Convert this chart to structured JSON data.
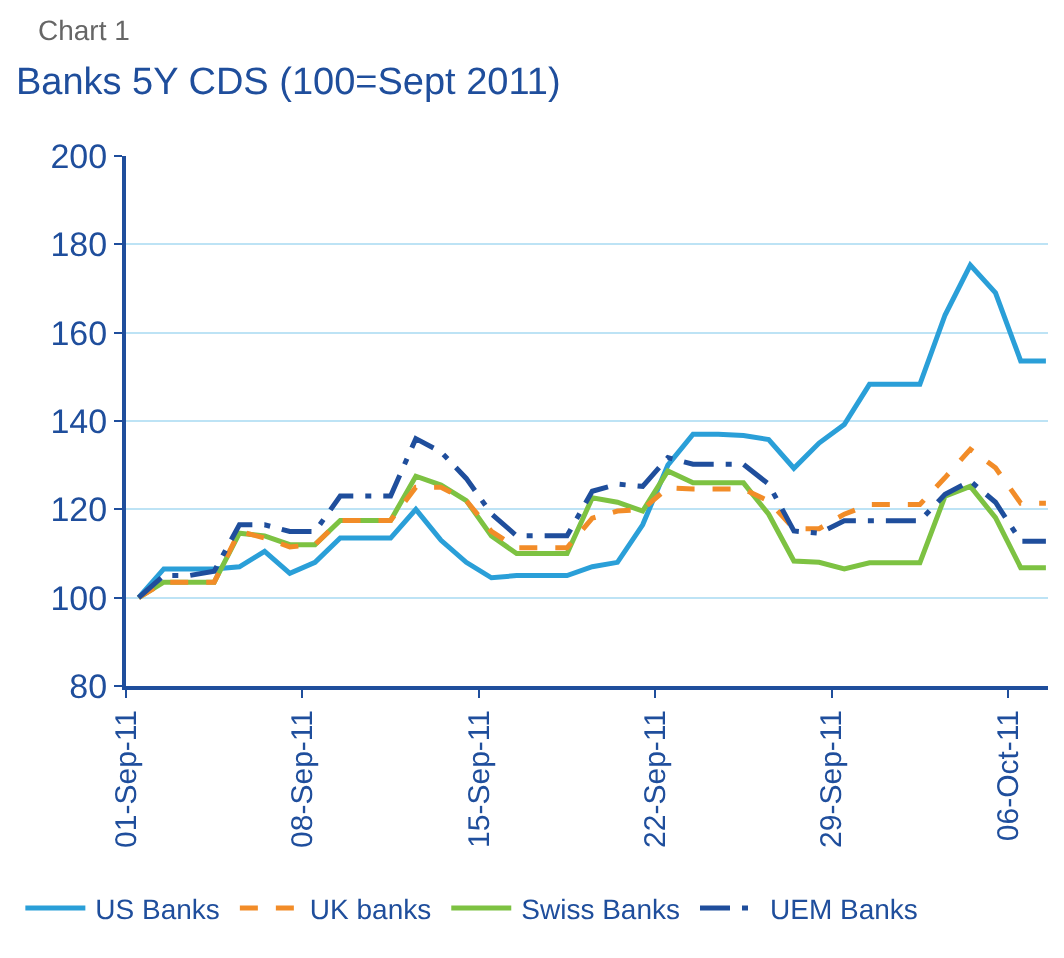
{
  "chart_data": {
    "type": "line",
    "title": "Banks 5Y CDS (100=Sept 2011)",
    "annotations": [
      "Chart 1"
    ],
    "x": [
      "2011-09-01T12:00",
      "2011-09-02T12:00",
      "2011-09-03T12:00",
      "2011-09-04T12:00",
      "2011-09-05T12:00",
      "2011-09-06T12:00",
      "2011-09-07T12:00",
      "2011-09-08T12:00",
      "2011-09-09T12:00",
      "2011-09-10T12:00",
      "2011-09-11T12:00",
      "2011-09-12T12:00",
      "2011-09-13T12:00",
      "2011-09-14T12:00",
      "2011-09-15T12:00",
      "2011-09-16T12:00",
      "2011-09-17T12:00",
      "2011-09-18T12:00",
      "2011-09-19T12:00",
      "2011-09-20T12:00",
      "2011-09-21T12:00",
      "2011-09-22T12:00",
      "2011-09-23T12:00",
      "2011-09-24T12:00",
      "2011-09-25T12:00",
      "2011-09-26T12:00",
      "2011-09-27T12:00",
      "2011-09-28T12:00",
      "2011-09-29T12:00",
      "2011-09-30T12:00",
      "2011-10-01T12:00",
      "2011-10-02T12:00",
      "2011-10-03T12:00",
      "2011-10-04T12:00",
      "2011-10-05T12:00",
      "2011-10-06T12:00",
      "2011-10-07T12:00"
    ],
    "series": [
      {
        "name": "US Banks",
        "color": "#2a9fd8",
        "line_style": "solid",
        "values": [
          100,
          106.5,
          106.5,
          106.5,
          107,
          110.5,
          105.5,
          108,
          113.5,
          113.5,
          113.5,
          120,
          113,
          108,
          104.5,
          105,
          105,
          105,
          107,
          108,
          116.5,
          130,
          137,
          137,
          136.7,
          135.8,
          129.3,
          135,
          139.2,
          148.3,
          148.3,
          148.3,
          164,
          175.3,
          169,
          153.6,
          153.6
        ]
      },
      {
        "name": "UK banks",
        "color": "#f28c28",
        "line_style": "dashed",
        "values": [
          100,
          103.5,
          103.5,
          103.5,
          115,
          113.5,
          111.5,
          112,
          117.5,
          117.5,
          117.5,
          125,
          125,
          122,
          115,
          111.3,
          111.3,
          111.3,
          118,
          119.6,
          120,
          124.9,
          124.6,
          124.6,
          124.6,
          121.9,
          115.6,
          115.6,
          118.9,
          121.1,
          121.1,
          121.1,
          127.2,
          133.6,
          129.4,
          121.4,
          121.4
        ]
      },
      {
        "name": "Swiss Banks",
        "color": "#7dc242",
        "line_style": "solid",
        "values": [
          100,
          103.5,
          103.5,
          103.5,
          114.6,
          114,
          112,
          112,
          117.5,
          117.5,
          117.5,
          127.5,
          125.5,
          122,
          114,
          110,
          110,
          110,
          122.6,
          121.6,
          119.6,
          128.7,
          126,
          126,
          126,
          118.9,
          108.3,
          108,
          106.5,
          107.9,
          107.9,
          107.9,
          123,
          125.2,
          118.1,
          106.8,
          106.8
        ]
      },
      {
        "name": "UEM Banks",
        "color": "#1f4e9c",
        "line_style": "dashdot",
        "values": [
          100,
          105,
          105,
          106,
          116.5,
          116.5,
          115,
          115,
          123,
          123,
          123,
          136,
          133,
          127,
          119,
          114,
          114,
          114,
          124.1,
          125.7,
          125.2,
          131.7,
          130.2,
          130.2,
          130.2,
          125.7,
          115.1,
          114.6,
          117.4,
          117.4,
          117.4,
          117.4,
          123.4,
          126.4,
          121.6,
          112.8,
          112.8
        ]
      }
    ],
    "xlim": [
      "2011-09-01",
      "2011-10-07T14:00"
    ],
    "xticks": [
      {
        "value": "2011-09-01",
        "label": "01-Sep-11"
      },
      {
        "value": "2011-09-08",
        "label": "08-Sep-11"
      },
      {
        "value": "2011-09-15",
        "label": "15-Sep-11"
      },
      {
        "value": "2011-09-22",
        "label": "22-Sep-11"
      },
      {
        "value": "2011-09-29",
        "label": "29-Sep-11"
      },
      {
        "value": "2011-10-06",
        "label": "06-Oct-11"
      }
    ],
    "ylim": [
      80,
      200
    ],
    "yticks": [
      80,
      100,
      120,
      140,
      160,
      180,
      200
    ],
    "grid": "y",
    "legend": "bottom",
    "marker": "none"
  }
}
